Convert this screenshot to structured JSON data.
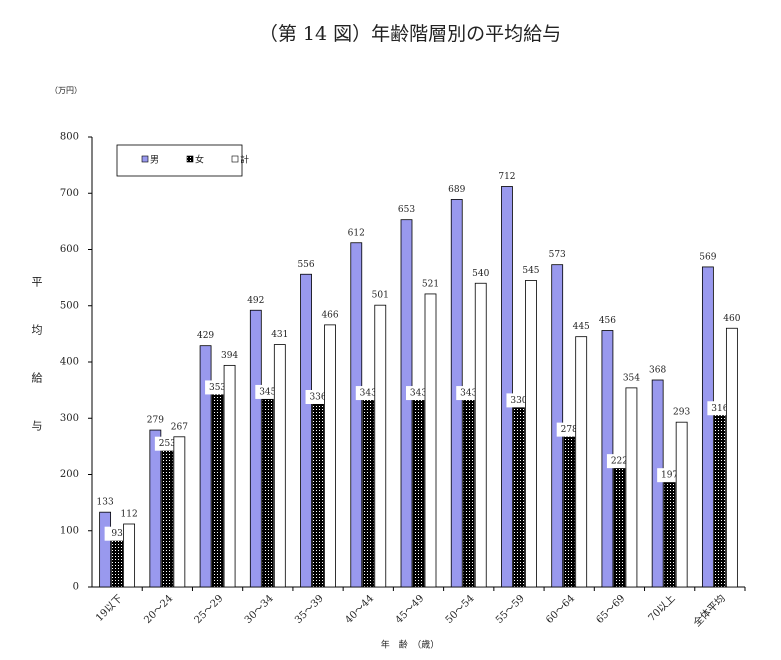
{
  "chart_data": {
    "type": "bar",
    "title": "（第 14 図）年齢階層別の平均給与",
    "y_unit": "（万円）",
    "ylabel": "平均給与",
    "xlabel": "年　齢　（歳）",
    "categories": [
      "19以下",
      "20～24",
      "25～29",
      "30～34",
      "35～39",
      "40～44",
      "45～49",
      "50～54",
      "55～59",
      "60～64",
      "65～69",
      "70以上",
      "全体平均"
    ],
    "series": [
      {
        "name": "男",
        "color": "#9999ee",
        "values": [
          133,
          279,
          429,
          492,
          556,
          612,
          653,
          689,
          712,
          573,
          456,
          368,
          569
        ]
      },
      {
        "name": "女",
        "color": "#000000",
        "values": [
          93,
          253,
          353,
          345,
          336,
          343,
          343,
          343,
          330,
          278,
          222,
          197,
          316
        ]
      },
      {
        "name": "計",
        "color": "#ffffff",
        "values": [
          112,
          267,
          394,
          431,
          466,
          501,
          521,
          540,
          545,
          445,
          354,
          293,
          460
        ]
      }
    ],
    "ylim": [
      0,
      800
    ],
    "yticks": [
      0,
      100,
      200,
      300,
      400,
      500,
      600,
      700,
      800
    ],
    "legend": "upper left"
  }
}
